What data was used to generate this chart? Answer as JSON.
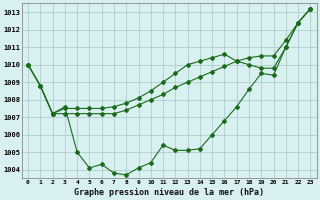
{
  "title": "Graphe pression niveau de la mer (hPa)",
  "bg_color": "#d8f0f0",
  "grid_color": "#b0cece",
  "line_color": "#1a6b1a",
  "ylim": [
    1003.5,
    1013.5
  ],
  "yticks": [
    1004,
    1005,
    1006,
    1007,
    1008,
    1009,
    1010,
    1011,
    1012,
    1013
  ],
  "x_labels": [
    "0",
    "1",
    "2",
    "3",
    "4",
    "5",
    "6",
    "7",
    "8",
    "9",
    "10",
    "11",
    "12",
    "13",
    "14",
    "15",
    "16",
    "17",
    "18",
    "19",
    "20",
    "21",
    "22",
    "23"
  ],
  "series": [
    [
      1010.0,
      1008.8,
      1007.2,
      1007.2,
      1007.2,
      1007.2,
      1007.2,
      1007.2,
      1007.4,
      1007.7,
      1008.0,
      1008.3,
      1008.7,
      1009.0,
      1009.3,
      1009.6,
      1009.9,
      1010.2,
      1010.4,
      1010.5,
      1010.5,
      1011.4,
      1012.4,
      1013.2
    ],
    [
      1010.0,
      1008.8,
      1007.2,
      1007.5,
      1007.5,
      1007.5,
      1007.5,
      1007.6,
      1007.8,
      1008.1,
      1008.5,
      1009.0,
      1009.5,
      1010.0,
      1010.2,
      1010.4,
      1010.6,
      1010.2,
      1010.0,
      1009.8,
      1009.8,
      1011.0,
      1012.4,
      1013.2
    ],
    [
      1010.0,
      1008.8,
      1007.2,
      1007.6,
      1005.0,
      1004.1,
      1004.3,
      1003.8,
      1003.7,
      1004.1,
      1004.4,
      1005.4,
      1005.1,
      1005.1,
      1005.2,
      1006.0,
      1006.8,
      1007.6,
      1008.6,
      1009.5,
      1009.4,
      1011.0,
      1012.4,
      1013.2
    ]
  ]
}
